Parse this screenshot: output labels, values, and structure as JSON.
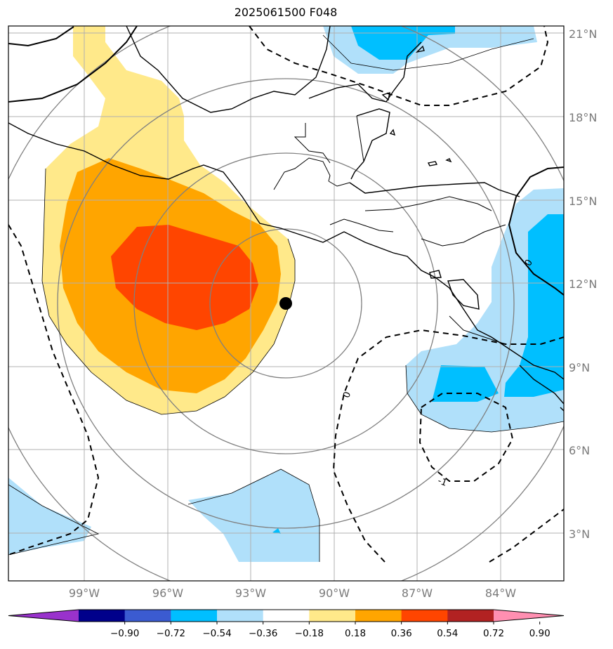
{
  "title": "2025061500 F048",
  "lat_labels": [
    "21°N",
    "18°N",
    "15°N",
    "12°N",
    "9°N",
    "6°N",
    "3°N"
  ],
  "lon_labels": [
    "99°W",
    "96°W",
    "93°W",
    "90°W",
    "87°W",
    "84°W"
  ],
  "contour_labels": {
    "zero": "0",
    "neg_one": "-1"
  },
  "colorbar": {
    "colors": [
      "#9932cc",
      "#00008b",
      "#3b5bd1",
      "#00bfff",
      "#b0e0fa",
      "#ffffff",
      "#ffe98a",
      "#ffa500",
      "#ff4500",
      "#b22222",
      "#ff8fb1"
    ],
    "ticks": [
      "−0.90",
      "−0.72",
      "−0.54",
      "−0.36",
      "−0.18",
      "0.18",
      "0.36",
      "0.54",
      "0.72",
      "0.90"
    ]
  },
  "marker": "storm-center-dot",
  "colors": {
    "grid": "#b0b0b0",
    "coast": "#000000",
    "range_rings": "#808080"
  }
}
